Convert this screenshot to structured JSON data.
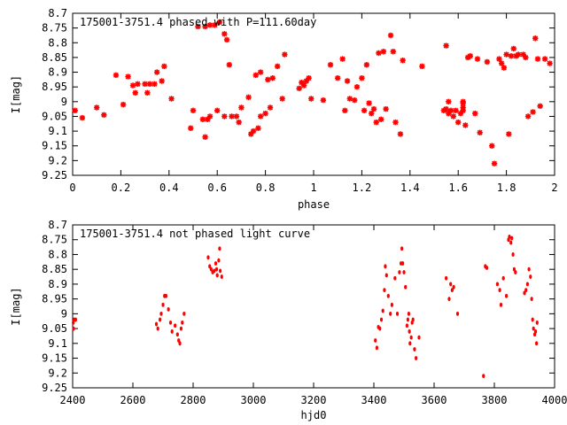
{
  "chart_data": [
    {
      "type": "scatter",
      "title": "175001-3751.4 phased with P=111.60day",
      "xlabel": "phase",
      "ylabel": "I[mag]",
      "xlim": [
        0,
        2
      ],
      "ylim": [
        9.25,
        8.7
      ],
      "y_inverted": true,
      "grid": false,
      "marker_color": "#ff0000",
      "marker": "star",
      "x_ticks": [
        "0",
        "0.2",
        "0.4",
        "0.6",
        "0.8",
        "1",
        "1.2",
        "1.4",
        "1.6",
        "1.8",
        "2"
      ],
      "y_ticks": [
        "8.7",
        "8.75",
        "8.8",
        "8.85",
        "8.9",
        "8.95",
        "9",
        "9.05",
        "9.1",
        "9.15",
        "9.2",
        "9.25"
      ],
      "x_tick_values": [
        0,
        0.2,
        0.4,
        0.6,
        0.8,
        1.0,
        1.2,
        1.4,
        1.6,
        1.8,
        2.0
      ],
      "y_tick_values": [
        8.7,
        8.75,
        8.8,
        8.85,
        8.9,
        8.95,
        9.0,
        9.05,
        9.1,
        9.15,
        9.2,
        9.25
      ],
      "points": [
        [
          0.01,
          9.03
        ],
        [
          0.04,
          9.055
        ],
        [
          0.1,
          9.02
        ],
        [
          0.13,
          9.045
        ],
        [
          0.18,
          8.91
        ],
        [
          0.21,
          9.01
        ],
        [
          0.23,
          8.915
        ],
        [
          0.25,
          8.945
        ],
        [
          0.26,
          8.97
        ],
        [
          0.27,
          8.94
        ],
        [
          0.3,
          8.94
        ],
        [
          0.31,
          8.97
        ],
        [
          0.32,
          8.94
        ],
        [
          0.34,
          8.94
        ],
        [
          0.35,
          8.9
        ],
        [
          0.37,
          8.93
        ],
        [
          0.38,
          8.88
        ],
        [
          0.41,
          8.99
        ],
        [
          0.49,
          9.09
        ],
        [
          0.5,
          9.03
        ],
        [
          0.52,
          8.745
        ],
        [
          0.54,
          9.06
        ],
        [
          0.55,
          9.12
        ],
        [
          0.55,
          8.745
        ],
        [
          0.56,
          9.06
        ],
        [
          0.57,
          8.74
        ],
        [
          0.57,
          9.05
        ],
        [
          0.59,
          8.74
        ],
        [
          0.6,
          9.03
        ],
        [
          0.61,
          8.73
        ],
        [
          0.63,
          9.05
        ],
        [
          0.63,
          8.77
        ],
        [
          0.64,
          8.79
        ],
        [
          0.65,
          8.875
        ],
        [
          0.66,
          9.05
        ],
        [
          0.68,
          9.05
        ],
        [
          0.69,
          9.07
        ],
        [
          0.7,
          9.02
        ],
        [
          0.73,
          8.985
        ],
        [
          0.74,
          9.11
        ],
        [
          0.75,
          9.1
        ],
        [
          0.76,
          8.91
        ],
        [
          0.77,
          9.09
        ],
        [
          0.78,
          9.05
        ],
        [
          0.78,
          8.9
        ],
        [
          0.8,
          9.04
        ],
        [
          0.81,
          8.925
        ],
        [
          0.82,
          9.02
        ],
        [
          0.83,
          8.92
        ],
        [
          0.85,
          8.88
        ],
        [
          0.87,
          8.99
        ],
        [
          0.88,
          8.84
        ],
        [
          0.94,
          8.955
        ],
        [
          0.95,
          8.935
        ],
        [
          0.96,
          8.945
        ],
        [
          0.97,
          8.93
        ],
        [
          0.98,
          8.92
        ],
        [
          0.99,
          8.99
        ],
        [
          1.04,
          8.995
        ],
        [
          1.07,
          8.875
        ],
        [
          1.1,
          8.92
        ],
        [
          1.12,
          8.855
        ],
        [
          1.13,
          9.03
        ],
        [
          1.14,
          8.93
        ],
        [
          1.15,
          8.99
        ],
        [
          1.17,
          8.995
        ],
        [
          1.18,
          8.95
        ],
        [
          1.2,
          8.92
        ],
        [
          1.21,
          9.03
        ],
        [
          1.22,
          8.875
        ],
        [
          1.23,
          9.005
        ],
        [
          1.24,
          9.04
        ],
        [
          1.25,
          9.025
        ],
        [
          1.26,
          9.07
        ],
        [
          1.27,
          8.835
        ],
        [
          1.28,
          9.06
        ],
        [
          1.29,
          8.83
        ],
        [
          1.3,
          9.025
        ],
        [
          1.32,
          8.775
        ],
        [
          1.33,
          8.83
        ],
        [
          1.34,
          9.07
        ],
        [
          1.36,
          9.11
        ],
        [
          1.37,
          8.86
        ],
        [
          1.45,
          8.88
        ],
        [
          1.54,
          9.03
        ],
        [
          1.55,
          8.81
        ],
        [
          1.55,
          9.025
        ],
        [
          1.56,
          9.0
        ],
        [
          1.56,
          9.04
        ],
        [
          1.57,
          9.03
        ],
        [
          1.58,
          9.05
        ],
        [
          1.59,
          9.03
        ],
        [
          1.6,
          9.07
        ],
        [
          1.61,
          9.04
        ],
        [
          1.62,
          9.005
        ],
        [
          1.62,
          9.0
        ],
        [
          1.62,
          9.02
        ],
        [
          1.62,
          9.03
        ],
        [
          1.63,
          9.08
        ],
        [
          1.64,
          8.85
        ],
        [
          1.65,
          8.845
        ],
        [
          1.67,
          9.04
        ],
        [
          1.68,
          8.855
        ],
        [
          1.69,
          9.105
        ],
        [
          1.72,
          8.865
        ],
        [
          1.74,
          9.15
        ],
        [
          1.75,
          9.21
        ],
        [
          1.77,
          8.855
        ],
        [
          1.78,
          8.87
        ],
        [
          1.79,
          8.885
        ],
        [
          1.8,
          8.84
        ],
        [
          1.81,
          9.11
        ],
        [
          1.82,
          8.845
        ],
        [
          1.83,
          8.82
        ],
        [
          1.84,
          8.845
        ],
        [
          1.85,
          8.84
        ],
        [
          1.87,
          8.84
        ],
        [
          1.88,
          8.85
        ],
        [
          1.89,
          9.05
        ],
        [
          1.91,
          9.035
        ],
        [
          1.92,
          8.785
        ],
        [
          1.93,
          8.855
        ],
        [
          1.94,
          9.015
        ],
        [
          1.96,
          8.855
        ],
        [
          1.98,
          8.87
        ]
      ]
    },
    {
      "type": "scatter",
      "title": "175001-3751.4 not phased light curve",
      "xlabel": "hjd0",
      "ylabel": "I[mag]",
      "xlim": [
        2400,
        4000
      ],
      "ylim": [
        9.25,
        8.7
      ],
      "y_inverted": true,
      "grid": false,
      "marker_color": "#ff0000",
      "marker": "dot",
      "x_ticks": [
        "2400",
        "2600",
        "2800",
        "3000",
        "3200",
        "3400",
        "3600",
        "3800",
        "4000"
      ],
      "y_ticks": [
        "8.7",
        "8.75",
        "8.8",
        "8.85",
        "8.9",
        "8.95",
        "9",
        "9.05",
        "9.1",
        "9.15",
        "9.2",
        "9.25"
      ],
      "x_tick_values": [
        2400,
        2600,
        2800,
        3000,
        3200,
        3400,
        3600,
        3800,
        4000
      ],
      "y_tick_values": [
        8.7,
        8.75,
        8.8,
        8.85,
        8.9,
        8.95,
        9.0,
        9.05,
        9.1,
        9.15,
        9.2,
        9.25
      ],
      "points": [
        [
          2402,
          9.03
        ],
        [
          2403,
          9.05
        ],
        [
          2405,
          9.02
        ],
        [
          2410,
          9.02
        ],
        [
          2678,
          9.035
        ],
        [
          2683,
          9.05
        ],
        [
          2690,
          9.02
        ],
        [
          2694,
          9.0
        ],
        [
          2700,
          8.97
        ],
        [
          2705,
          8.94
        ],
        [
          2710,
          8.94
        ],
        [
          2718,
          8.985
        ],
        [
          2725,
          9.03
        ],
        [
          2730,
          9.06
        ],
        [
          2740,
          9.04
        ],
        [
          2748,
          9.07
        ],
        [
          2752,
          9.09
        ],
        [
          2756,
          9.1
        ],
        [
          2760,
          9.05
        ],
        [
          2764,
          9.03
        ],
        [
          2770,
          9.0
        ],
        [
          2850,
          8.81
        ],
        [
          2855,
          8.84
        ],
        [
          2860,
          8.85
        ],
        [
          2865,
          8.86
        ],
        [
          2870,
          8.855
        ],
        [
          2875,
          8.83
        ],
        [
          2878,
          8.85
        ],
        [
          2880,
          8.87
        ],
        [
          2885,
          8.82
        ],
        [
          2888,
          8.78
        ],
        [
          2890,
          8.855
        ],
        [
          2895,
          8.875
        ],
        [
          3405,
          9.09
        ],
        [
          3410,
          9.115
        ],
        [
          3415,
          9.045
        ],
        [
          3420,
          9.05
        ],
        [
          3425,
          9.02
        ],
        [
          3430,
          8.99
        ],
        [
          3435,
          8.92
        ],
        [
          3438,
          8.84
        ],
        [
          3442,
          8.87
        ],
        [
          3448,
          8.94
        ],
        [
          3455,
          9.0
        ],
        [
          3460,
          8.97
        ],
        [
          3470,
          8.88
        ],
        [
          3478,
          9.0
        ],
        [
          3485,
          8.86
        ],
        [
          3490,
          8.83
        ],
        [
          3493,
          8.78
        ],
        [
          3496,
          8.83
        ],
        [
          3500,
          8.86
        ],
        [
          3505,
          8.91
        ],
        [
          3510,
          9.04
        ],
        [
          3513,
          9.02
        ],
        [
          3516,
          9.0
        ],
        [
          3518,
          9.06
        ],
        [
          3520,
          9.1
        ],
        [
          3524,
          9.08
        ],
        [
          3527,
          9.03
        ],
        [
          3530,
          9.02
        ],
        [
          3535,
          9.12
        ],
        [
          3540,
          9.15
        ],
        [
          3550,
          9.08
        ],
        [
          3640,
          8.88
        ],
        [
          3650,
          8.95
        ],
        [
          3655,
          8.9
        ],
        [
          3660,
          8.92
        ],
        [
          3665,
          8.91
        ],
        [
          3678,
          9.0
        ],
        [
          3764,
          9.21
        ],
        [
          3770,
          8.84
        ],
        [
          3775,
          8.845
        ],
        [
          3810,
          8.9
        ],
        [
          3818,
          8.92
        ],
        [
          3822,
          8.97
        ],
        [
          3830,
          8.88
        ],
        [
          3840,
          8.94
        ],
        [
          3847,
          8.75
        ],
        [
          3850,
          8.74
        ],
        [
          3855,
          8.76
        ],
        [
          3858,
          8.745
        ],
        [
          3862,
          8.8
        ],
        [
          3866,
          8.85
        ],
        [
          3870,
          8.86
        ],
        [
          3900,
          8.93
        ],
        [
          3905,
          8.92
        ],
        [
          3910,
          8.9
        ],
        [
          3915,
          8.85
        ],
        [
          3920,
          8.875
        ],
        [
          3924,
          8.95
        ],
        [
          3927,
          9.02
        ],
        [
          3930,
          9.05
        ],
        [
          3934,
          9.07
        ],
        [
          3937,
          9.06
        ],
        [
          3940,
          9.1
        ],
        [
          3942,
          9.03
        ]
      ]
    }
  ]
}
